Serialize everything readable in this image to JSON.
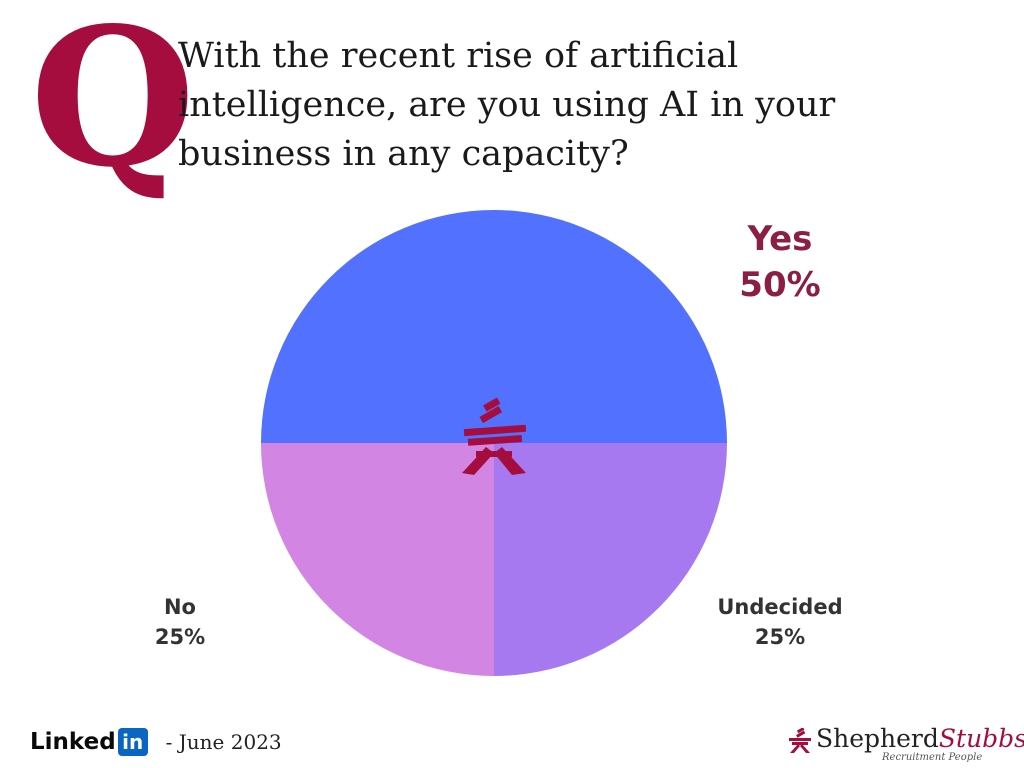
{
  "header": {
    "q_letter": "Q",
    "question_lines": [
      "With the recent rise of artificial",
      "intelligence, are you using AI in your",
      "business in any capacity?"
    ]
  },
  "chart_data": {
    "type": "pie",
    "slices": [
      {
        "label": "Yes",
        "value": 50,
        "value_label": "50%",
        "color": "#5271ff"
      },
      {
        "label": "Undecided",
        "value": 25,
        "value_label": "25%",
        "color": "#a679f0"
      },
      {
        "label": "No",
        "value": 25,
        "value_label": "25%",
        "color": "#d385e3"
      }
    ],
    "start_angle_deg": 180,
    "direction": "clockwise",
    "legend": "none",
    "center_logo_color": "#a50d3f"
  },
  "labels": {
    "yes": {
      "name": "Yes",
      "pct": "50%"
    },
    "no": {
      "name": "No",
      "pct": "25%"
    },
    "undecided": {
      "name": "Undecided",
      "pct": "25%"
    }
  },
  "footer": {
    "linkedin_word": "Linked",
    "linkedin_box": "in",
    "date_text": "- June 2023",
    "brand_part1": "Shepherd",
    "brand_part2": "Stubbs",
    "brand_tagline": "Recruitment People"
  }
}
